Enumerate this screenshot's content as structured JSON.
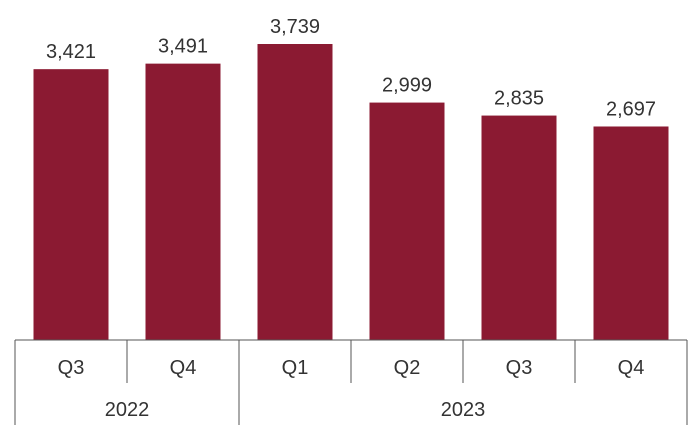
{
  "chart_data": {
    "type": "bar",
    "categories": [
      "Q3",
      "Q4",
      "Q1",
      "Q2",
      "Q3",
      "Q4"
    ],
    "groups": [
      {
        "label": "2022",
        "categories": [
          "Q3",
          "Q4"
        ]
      },
      {
        "label": "2023",
        "categories": [
          "Q1",
          "Q2",
          "Q3",
          "Q4"
        ]
      }
    ],
    "values": [
      3421,
      3491,
      3739,
      2999,
      2835,
      2697
    ],
    "data_labels": [
      "3,421",
      "3,491",
      "3,739",
      "2,999",
      "2,835",
      "2,697"
    ],
    "title": "",
    "xlabel": "",
    "ylabel": "",
    "ylim": [
      0,
      3739
    ],
    "grid": false,
    "legend": "none",
    "bar_color": "#8B1A32"
  }
}
